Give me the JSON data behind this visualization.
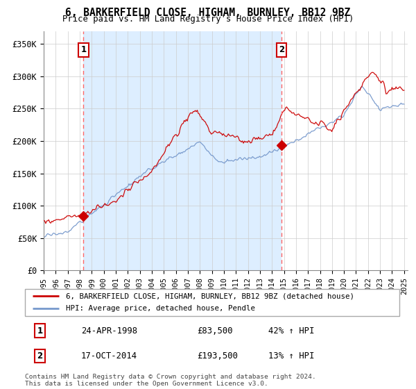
{
  "title": "6, BARKERFIELD CLOSE, HIGHAM, BURNLEY, BB12 9BZ",
  "subtitle": "Price paid vs. HM Land Registry's House Price Index (HPI)",
  "legend_line1": "6, BARKERFIELD CLOSE, HIGHAM, BURNLEY, BB12 9BZ (detached house)",
  "legend_line2": "HPI: Average price, detached house, Pendle",
  "transaction1_date": "24-APR-1998",
  "transaction1_price": "£83,500",
  "transaction1_hpi": "42% ↑ HPI",
  "transaction2_date": "17-OCT-2014",
  "transaction2_price": "£193,500",
  "transaction2_hpi": "13% ↑ HPI",
  "footer": "Contains HM Land Registry data © Crown copyright and database right 2024.\nThis data is licensed under the Open Government Licence v3.0.",
  "property_color": "#cc0000",
  "hpi_color": "#7799cc",
  "hpi_fill_color": "#ddeeff",
  "vline_color": "#ff6666",
  "ylim": [
    0,
    370000
  ],
  "yticks": [
    0,
    50000,
    100000,
    150000,
    200000,
    250000,
    300000,
    350000
  ],
  "ytick_labels": [
    "£0",
    "£50K",
    "£100K",
    "£150K",
    "£200K",
    "£250K",
    "£300K",
    "£350K"
  ],
  "transaction1_x": 1998.31,
  "transaction1_y": 83500,
  "transaction2_x": 2014.79,
  "transaction2_y": 193500,
  "xlim_left": 1995.0,
  "xlim_right": 2025.3
}
